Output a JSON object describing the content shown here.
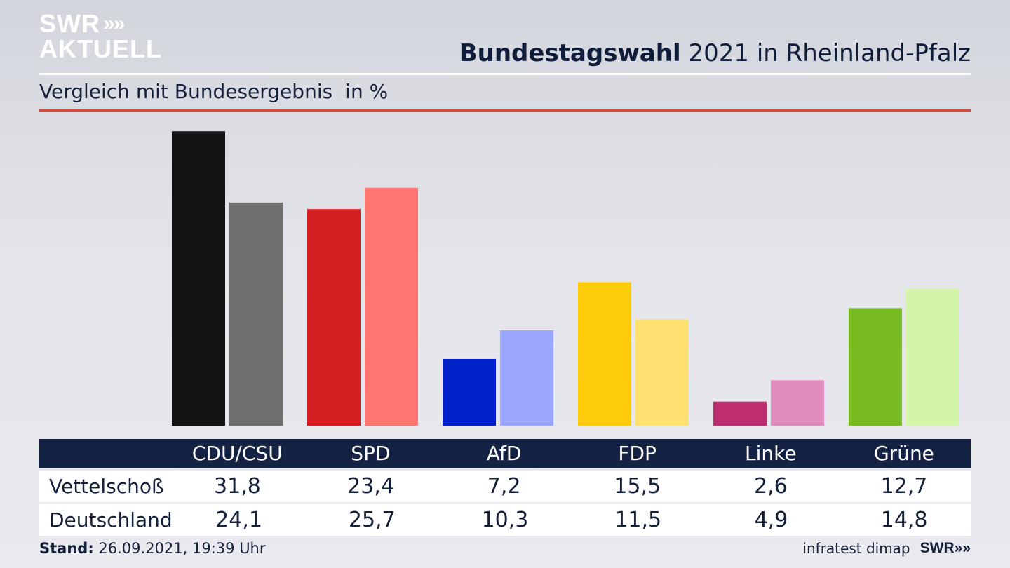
{
  "brand": {
    "logo_line1": "SWR",
    "logo_line2": "AKTUELL",
    "chevrons": "»"
  },
  "header": {
    "title_bold": "Bundestagswahl",
    "title_rest": "2021 in Rheinland-Pfalz"
  },
  "subheader": {
    "text": "Vergleich mit Bundesergebnis",
    "unit": "in %"
  },
  "chart_data": {
    "type": "bar",
    "title": "Bundestagswahl 2021 in Rheinland-Pfalz",
    "subtitle": "Vergleich mit Bundesergebnis in %",
    "categories": [
      "CDU/CSU",
      "SPD",
      "AfD",
      "FDP",
      "Linke",
      "Grüne"
    ],
    "series": [
      {
        "name": "Vettelschoß",
        "values": [
          31.8,
          23.4,
          7.2,
          15.5,
          2.6,
          12.7
        ],
        "colors": [
          "#141414",
          "#d42020",
          "#0021c8",
          "#fecb0a",
          "#bf2f70",
          "#77bb20"
        ]
      },
      {
        "name": "Deutschland",
        "values": [
          24.1,
          25.7,
          10.3,
          11.5,
          4.9,
          14.8
        ],
        "colors": [
          "#72706e",
          "#ff7570",
          "#9ca8ff",
          "#fee071",
          "#df8bbb",
          "#d4f4a8"
        ]
      }
    ],
    "ylim": [
      0,
      32
    ]
  },
  "footer": {
    "stand_label": "Stand:",
    "stand_value": "26.09.2021, 19:39 Uhr",
    "source": "infratest dimap",
    "brand": "SWR"
  }
}
